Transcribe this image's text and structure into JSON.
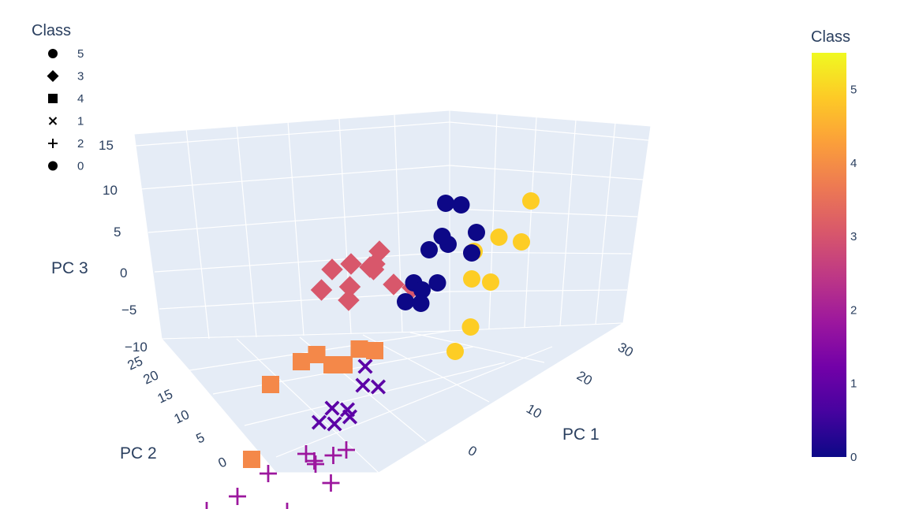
{
  "chart_data": {
    "type": "scatter3d",
    "legend": {
      "title": "Class",
      "entries": [
        {
          "label": "5",
          "symbol": "circle"
        },
        {
          "label": "3",
          "symbol": "diamond"
        },
        {
          "label": "4",
          "symbol": "square"
        },
        {
          "label": "1",
          "symbol": "x"
        },
        {
          "label": "2",
          "symbol": "cross"
        },
        {
          "label": "0",
          "symbol": "circle"
        }
      ]
    },
    "axes": {
      "x": {
        "title": "PC 1",
        "ticks": [
          "0",
          "10",
          "20",
          "30"
        ]
      },
      "y": {
        "title": "PC 2",
        "ticks": [
          "0",
          "5",
          "10",
          "15",
          "20",
          "25"
        ]
      },
      "z": {
        "title": "PC 3",
        "ticks": [
          "−10",
          "−5",
          "0",
          "5",
          "10",
          "15"
        ]
      }
    },
    "colorbar": {
      "title": "Class",
      "ticks": [
        "0",
        "1",
        "2",
        "3",
        "4",
        "5"
      ],
      "range": [
        0,
        5.5
      ],
      "colors": [
        "#0d0887",
        "#46039f",
        "#7201a8",
        "#9c179e",
        "#bd3786",
        "#d8576b",
        "#ed7953",
        "#fb9f3a",
        "#fdca26",
        "#f0f921"
      ]
    },
    "class_colors": {
      "0": "#0d0887",
      "1": "#5c01a6",
      "2": "#9c179e",
      "3": "#d8576b",
      "4": "#f48849",
      "5": "#fdcd25"
    },
    "series": [
      {
        "name": "5",
        "symbol": "circle",
        "points": [
          [
            22,
            4,
            -8
          ],
          [
            20,
            6,
            -6
          ],
          [
            18,
            3,
            -9
          ],
          [
            24,
            5,
            -5
          ],
          [
            26,
            2,
            -7
          ],
          [
            16,
            4,
            -10
          ],
          [
            21,
            7,
            -4
          ],
          [
            30,
            6,
            -7
          ]
        ]
      },
      {
        "name": "3",
        "symbol": "diamond",
        "points": [
          [
            -3,
            10,
            15
          ],
          [
            0,
            12,
            14
          ],
          [
            2,
            10,
            13
          ],
          [
            4,
            8,
            11
          ],
          [
            6,
            10,
            9
          ],
          [
            5,
            7,
            12
          ],
          [
            8,
            8,
            5
          ],
          [
            3,
            12,
            9
          ],
          [
            10,
            6,
            3
          ],
          [
            7,
            12,
            7
          ],
          [
            1,
            9,
            10
          ]
        ]
      },
      {
        "name": "4",
        "symbol": "square",
        "points": [
          [
            -8,
            16,
            8
          ],
          [
            -4,
            14,
            7
          ],
          [
            -2,
            13,
            6
          ],
          [
            0,
            12,
            3
          ],
          [
            2,
            12,
            1
          ],
          [
            -10,
            18,
            1
          ],
          [
            4,
            11,
            1
          ],
          [
            6,
            10,
            -1
          ]
        ]
      },
      {
        "name": "1",
        "symbol": "x",
        "points": [
          [
            0,
            12,
            -2
          ],
          [
            2,
            11,
            -4
          ],
          [
            4,
            10,
            -3
          ],
          [
            1,
            13,
            -5
          ],
          [
            6,
            9,
            -5
          ],
          [
            -1,
            14,
            -3
          ],
          [
            3,
            12,
            -6
          ],
          [
            5,
            11,
            -2
          ]
        ]
      },
      {
        "name": "2",
        "symbol": "cross",
        "points": [
          [
            -14,
            24,
            -2
          ],
          [
            -10,
            22,
            -4
          ],
          [
            -6,
            20,
            -5
          ],
          [
            -2,
            16,
            -6
          ],
          [
            0,
            17,
            -9
          ],
          [
            2,
            15,
            -10
          ],
          [
            -4,
            18,
            -11
          ],
          [
            1,
            14,
            -12
          ],
          [
            -1,
            15,
            -8
          ],
          [
            3,
            13,
            -10
          ]
        ]
      },
      {
        "name": "0",
        "symbol": "circle",
        "points": [
          [
            18,
            10,
            4
          ],
          [
            14,
            8,
            3
          ],
          [
            12,
            9,
            1
          ],
          [
            20,
            9,
            2
          ],
          [
            16,
            6,
            2
          ],
          [
            18,
            11,
            0
          ],
          [
            10,
            8,
            1
          ],
          [
            14,
            10,
            -2
          ],
          [
            16,
            9,
            -3
          ],
          [
            12,
            7,
            -1
          ],
          [
            20,
            6,
            -3
          ],
          [
            22,
            8,
            -3
          ]
        ]
      }
    ]
  }
}
